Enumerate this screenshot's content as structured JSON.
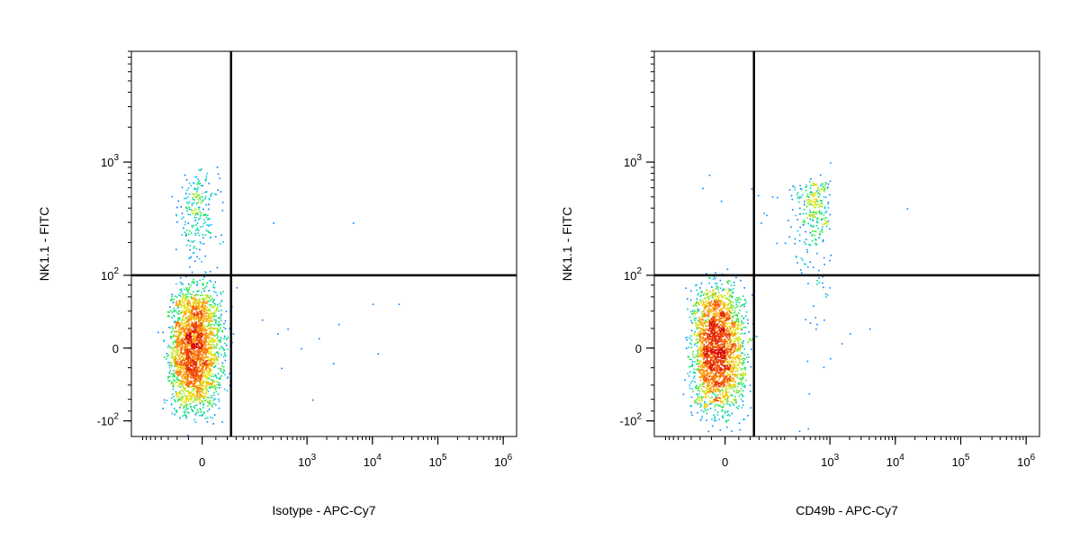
{
  "chart_data": [
    {
      "type": "scatter",
      "title": "",
      "xlabel": "Isotype - APC-Cy7",
      "ylabel": "NK1.1 - FITC",
      "x_scale": "biexponential",
      "y_scale": "biexponential",
      "x_ticks": [
        {
          "value": 0,
          "base": "0",
          "exp": ""
        },
        {
          "value": 1000,
          "base": "10",
          "exp": "3"
        },
        {
          "value": 10000,
          "base": "10",
          "exp": "4"
        },
        {
          "value": 100000,
          "base": "10",
          "exp": "5"
        },
        {
          "value": 1000000,
          "base": "10",
          "exp": "6"
        }
      ],
      "y_ticks": [
        {
          "value": -100,
          "base": "-10",
          "exp": "2"
        },
        {
          "value": 0,
          "base": "0",
          "exp": ""
        },
        {
          "value": 100,
          "base": "10",
          "exp": "2"
        },
        {
          "value": 1000,
          "base": "10",
          "exp": "3"
        }
      ],
      "gate": {
        "x": 60,
        "y": 100
      },
      "populations": [
        {
          "cx": -15,
          "cy": 0,
          "sx": 25,
          "sy": 35,
          "n": 2600
        },
        {
          "cx": -10,
          "cy": 350,
          "sx": 20,
          "sy": 200,
          "n": 260
        }
      ],
      "sparse_events": [
        [
          300,
          300
        ],
        [
          5000,
          300
        ],
        [
          200,
          30
        ],
        [
          500,
          20
        ],
        [
          1500,
          10
        ],
        [
          3000,
          25
        ],
        [
          10000,
          50
        ],
        [
          25000,
          50
        ],
        [
          1200,
          -60
        ],
        [
          12000,
          -5
        ],
        [
          2500,
          -15
        ],
        [
          400,
          -20
        ],
        [
          800,
          0
        ],
        [
          350,
          15
        ]
      ]
    },
    {
      "type": "scatter",
      "title": "",
      "xlabel": "CD49b - APC-Cy7",
      "ylabel": "NK1.1 - FITC",
      "x_scale": "biexponential",
      "y_scale": "biexponential",
      "x_ticks": [
        {
          "value": 0,
          "base": "0",
          "exp": ""
        },
        {
          "value": 1000,
          "base": "10",
          "exp": "3"
        },
        {
          "value": 10000,
          "base": "10",
          "exp": "4"
        },
        {
          "value": 100000,
          "base": "10",
          "exp": "5"
        },
        {
          "value": 1000000,
          "base": "10",
          "exp": "6"
        }
      ],
      "y_ticks": [
        {
          "value": -100,
          "base": "-10",
          "exp": "2"
        },
        {
          "value": 0,
          "base": "0",
          "exp": ""
        },
        {
          "value": 100,
          "base": "10",
          "exp": "2"
        },
        {
          "value": 1000,
          "base": "10",
          "exp": "3"
        }
      ],
      "gate": {
        "x": 60,
        "y": 100
      },
      "populations": [
        {
          "cx": -15,
          "cy": 0,
          "sx": 25,
          "sy": 35,
          "n": 2500
        },
        {
          "cx": 550,
          "cy": 380,
          "sx": 200,
          "sy": 180,
          "n": 300
        }
      ],
      "sparse_events": [
        [
          -30,
          780
        ],
        [
          -45,
          600
        ],
        [
          150,
          500
        ],
        [
          250,
          520
        ],
        [
          100,
          350
        ],
        [
          80,
          300
        ],
        [
          200,
          200
        ],
        [
          300,
          150
        ],
        [
          400,
          130
        ],
        [
          15000,
          400
        ],
        [
          1500,
          5
        ],
        [
          2000,
          15
        ],
        [
          4000,
          20
        ],
        [
          1000,
          -10
        ],
        [
          600,
          20
        ],
        [
          800,
          30
        ],
        [
          1000,
          1000
        ]
      ]
    }
  ]
}
